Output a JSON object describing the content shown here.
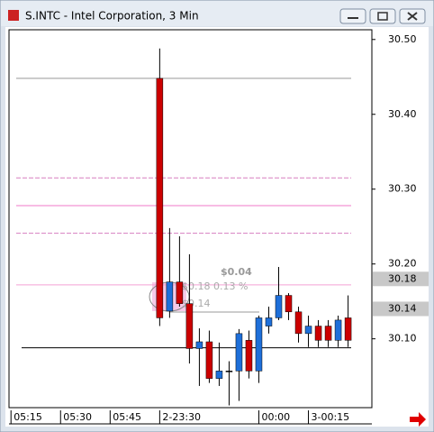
{
  "window_title": "S.INTC - Intel Corporation, 3 Min",
  "chart_data": {
    "type": "candlestick",
    "x": [
      15,
      16,
      17,
      18,
      19,
      20,
      21,
      22,
      23,
      24,
      25,
      26,
      27,
      28,
      29,
      30,
      31,
      32,
      33,
      34
    ],
    "open": [
      30.448,
      30.137,
      30.176,
      30.147,
      30.087,
      30.096,
      30.047,
      30.057,
      30.057,
      30.098,
      30.057,
      30.117,
      30.128,
      30.158,
      30.136,
      30.107,
      30.117,
      30.117,
      30.098,
      30.128
    ],
    "high": [
      30.488,
      30.248,
      30.237,
      30.213,
      30.114,
      30.111,
      30.095,
      30.07,
      30.113,
      30.111,
      30.131,
      30.143,
      30.196,
      30.161,
      30.143,
      30.131,
      30.125,
      30.125,
      30.131,
      30.158
    ],
    "low": [
      30.117,
      30.128,
      30.143,
      30.067,
      30.037,
      30.041,
      30.037,
      30.011,
      30.017,
      30.047,
      30.041,
      30.107,
      30.125,
      30.125,
      30.095,
      30.089,
      30.089,
      30.089,
      30.089,
      30.089
    ],
    "close": [
      30.128,
      30.176,
      30.147,
      30.087,
      30.096,
      30.047,
      30.057,
      30.057,
      30.107,
      30.057,
      30.128,
      30.128,
      30.158,
      30.136,
      30.107,
      30.117,
      30.098,
      30.098,
      30.125,
      30.098
    ],
    "up_color": "#1e6fd9",
    "down_color": "#cc0000",
    "xlim": [
      -0.2,
      36.4
    ],
    "ylim": [
      30.008,
      30.513
    ],
    "xticks": [
      {
        "value": 0,
        "label": "05:15"
      },
      {
        "value": 5,
        "label": "05:30"
      },
      {
        "value": 10,
        "label": "05:45"
      },
      {
        "value": 15,
        "label": "2-23:30"
      },
      {
        "value": 25,
        "label": "00:00"
      },
      {
        "value": 30,
        "label": "3-00:15"
      }
    ],
    "yticks": [
      {
        "value": 30.1,
        "label": "30.10"
      },
      {
        "value": 30.2,
        "label": "30.20"
      },
      {
        "value": 30.3,
        "label": "30.30"
      },
      {
        "value": 30.4,
        "label": "30.40"
      },
      {
        "value": 30.5,
        "label": "30.50"
      }
    ],
    "levels": [
      {
        "value": 30.448,
        "color": "#999999",
        "style": "solid"
      },
      {
        "value": 30.315,
        "color": "#d77fc0",
        "style": "dashed"
      },
      {
        "value": 30.278,
        "color": "#f07ac8",
        "style": "solid"
      },
      {
        "value": 30.241,
        "color": "#d77fc0",
        "style": "dashed"
      },
      {
        "value": 30.172,
        "color": "#f5a0d5",
        "style": "solid"
      },
      {
        "value": 30.088,
        "color": "#000000",
        "style": "solid"
      }
    ],
    "price_tags": [
      30.18,
      30.14
    ],
    "annotations": [
      "$0.04",
      "$0.18 0.13 %",
      "$0.14"
    ]
  }
}
